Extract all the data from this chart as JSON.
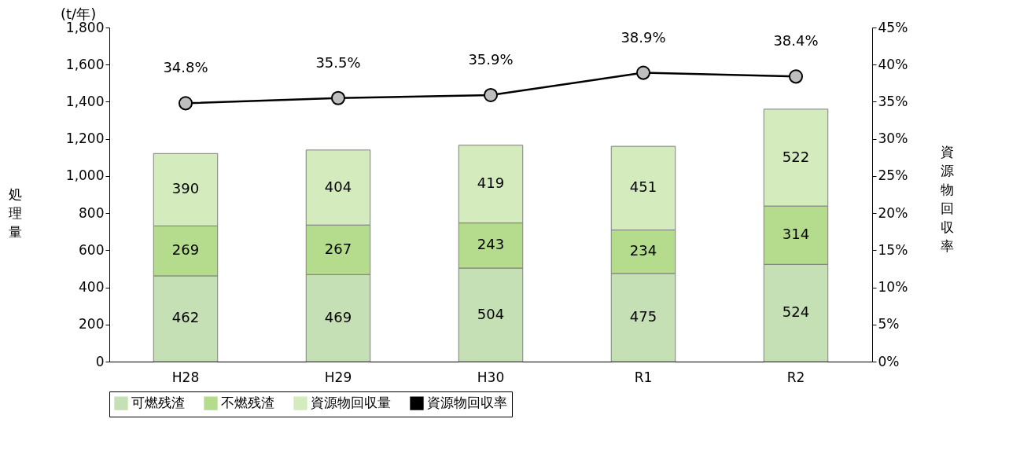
{
  "chart_data": {
    "type": "bar",
    "stacked": true,
    "categories": [
      "H28",
      "H29",
      "H30",
      "R1",
      "R2"
    ],
    "ylabel": "処理量",
    "y2label": "資源物回収率",
    "annotations": [
      "(t/年)"
    ],
    "ylim": [
      0,
      1800
    ],
    "yticks": [
      0,
      200,
      400,
      600,
      800,
      {
        "value": 1000,
        "label": "1,000"
      },
      {
        "value": 1200,
        "label": "1,200"
      },
      {
        "value": 1400,
        "label": "1,400"
      },
      {
        "value": 1600,
        "label": "1,600"
      },
      {
        "value": 1800,
        "label": "1,800"
      }
    ],
    "y2lim": [
      0,
      45
    ],
    "y2ticks": [
      {
        "value": 0,
        "label": "0%"
      },
      {
        "value": 5,
        "label": "5%"
      },
      {
        "value": 10,
        "label": "10%"
      },
      {
        "value": 15,
        "label": "15%"
      },
      {
        "value": 20,
        "label": "20%"
      },
      {
        "value": 25,
        "label": "25%"
      },
      {
        "value": 30,
        "label": "30%"
      },
      {
        "value": 35,
        "label": "35%"
      },
      {
        "value": 40,
        "label": "40%"
      },
      {
        "value": 45,
        "label": "45%"
      }
    ],
    "data_labels": true,
    "legend": "bottom",
    "marker": "circle",
    "series": [
      {
        "name": "可燃残渣",
        "color": "#c5e0b4",
        "values": [
          462,
          469,
          504,
          475,
          524
        ]
      },
      {
        "name": "不燃残渣",
        "color": "#b4dc8c",
        "values": [
          269,
          267,
          243,
          234,
          314
        ]
      },
      {
        "name": "資源物回収量",
        "color": "#d3ebbd",
        "values": [
          390,
          404,
          419,
          451,
          522
        ]
      },
      {
        "name": "資源物回収率",
        "type": "line",
        "axis": "y2",
        "color": "#000000",
        "values": [
          34.8,
          35.5,
          35.9,
          38.9,
          38.4
        ],
        "value_labels": [
          "34.8%",
          "35.5%",
          "35.9%",
          "38.9%",
          "38.4%"
        ]
      }
    ]
  }
}
